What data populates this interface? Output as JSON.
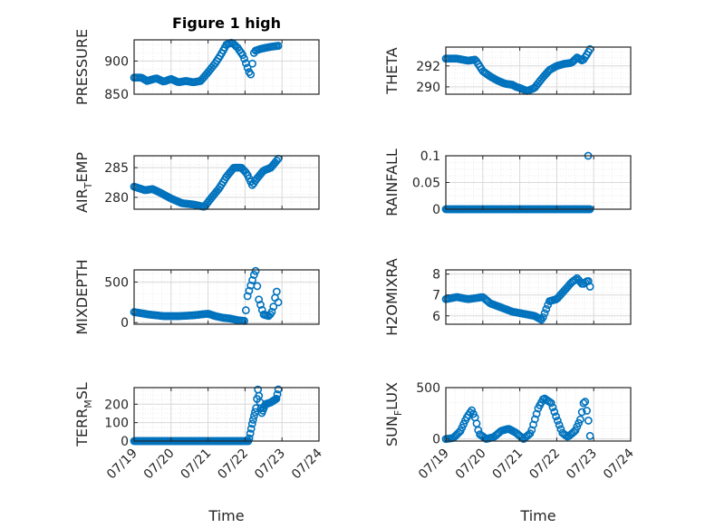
{
  "figure": {
    "title": "Figure 1 high"
  },
  "colors": {
    "marker": "#0072BD",
    "axes": "#262626",
    "grid_major": "#d9d9d9",
    "grid_minor": "#ebebeb"
  },
  "chart_data": [
    {
      "type": "scatter",
      "name": "pressure",
      "title": "Figure 1 high",
      "ylabel": "PRESSURE",
      "ylabel_sub": "",
      "yticks": [
        850,
        900
      ],
      "ylim": [
        850,
        932
      ],
      "xlim": [
        "07/19",
        "07/24"
      ],
      "grid": "on",
      "xticklabels": [],
      "xlabel": "",
      "anchors": [
        [
          0,
          875
        ],
        [
          0.2,
          875
        ],
        [
          0.35,
          870
        ],
        [
          0.6,
          874
        ],
        [
          0.8,
          869
        ],
        [
          1.0,
          873
        ],
        [
          1.2,
          868
        ],
        [
          1.4,
          870
        ],
        [
          1.6,
          868
        ],
        [
          1.8,
          870
        ],
        [
          2.0,
          883
        ],
        [
          2.2,
          897
        ],
        [
          2.35,
          910
        ],
        [
          2.5,
          925
        ],
        [
          2.65,
          928
        ],
        [
          2.8,
          920
        ],
        [
          2.95,
          908
        ],
        [
          3.1,
          885
        ],
        [
          3.15,
          878
        ],
        [
          3.25,
          915
        ],
        [
          3.4,
          918
        ],
        [
          3.55,
          920
        ],
        [
          3.75,
          922
        ],
        [
          3.9,
          923
        ]
      ],
      "count": 90
    },
    {
      "type": "scatter",
      "name": "theta",
      "title": "",
      "ylabel": "THETA",
      "ylabel_sub": "",
      "yticks": [
        290,
        292
      ],
      "ylim": [
        289.3,
        293.8
      ],
      "xlim": [
        "07/19",
        "07/24"
      ],
      "grid": "on",
      "xticklabels": [],
      "xlabel": "",
      "anchors": [
        [
          0,
          292.7
        ],
        [
          0.3,
          292.7
        ],
        [
          0.6,
          292.5
        ],
        [
          0.8,
          292.6
        ],
        [
          1.0,
          291.5
        ],
        [
          1.2,
          291.0
        ],
        [
          1.4,
          290.6
        ],
        [
          1.6,
          290.3
        ],
        [
          1.8,
          290.2
        ],
        [
          1.9,
          290.0
        ],
        [
          2.0,
          289.9
        ],
        [
          2.2,
          289.6
        ],
        [
          2.4,
          289.9
        ],
        [
          2.6,
          290.8
        ],
        [
          2.8,
          291.6
        ],
        [
          3.0,
          292.0
        ],
        [
          3.2,
          292.2
        ],
        [
          3.4,
          292.3
        ],
        [
          3.55,
          292.8
        ],
        [
          3.7,
          292.5
        ],
        [
          3.8,
          293.0
        ],
        [
          3.9,
          293.6
        ]
      ],
      "count": 90
    },
    {
      "type": "scatter",
      "name": "air_temp",
      "title": "",
      "ylabel": "AIR",
      "ylabel_sub": "T",
      "ylabel_tail": "EMP",
      "yticks": [
        280,
        285
      ],
      "ylim": [
        278,
        287
      ],
      "xlim": [
        "07/19",
        "07/24"
      ],
      "grid": "on",
      "xticklabels": [],
      "xlabel": "",
      "anchors": [
        [
          0,
          281.8
        ],
        [
          0.3,
          281.2
        ],
        [
          0.5,
          281.4
        ],
        [
          0.7,
          280.8
        ],
        [
          1.0,
          279.8
        ],
        [
          1.3,
          279.0
        ],
        [
          1.6,
          278.8
        ],
        [
          1.9,
          278.4
        ],
        [
          2.1,
          280.0
        ],
        [
          2.3,
          281.5
        ],
        [
          2.5,
          283.5
        ],
        [
          2.7,
          285.0
        ],
        [
          2.9,
          285.0
        ],
        [
          3.05,
          284.0
        ],
        [
          3.2,
          282.0
        ],
        [
          3.3,
          283.0
        ],
        [
          3.5,
          284.5
        ],
        [
          3.7,
          285.0
        ],
        [
          3.9,
          286.5
        ]
      ],
      "count": 95
    },
    {
      "type": "scatter",
      "name": "rainfall",
      "title": "",
      "ylabel": "RAINFALL",
      "ylabel_sub": "",
      "yticks": [
        0,
        0.05,
        0.1
      ],
      "yticklabels": [
        "0",
        "0.05",
        "0.1"
      ],
      "ylim": [
        0,
        0.1
      ],
      "xlim": [
        "07/19",
        "07/24"
      ],
      "grid": "on",
      "xticklabels": [],
      "xlabel": "",
      "anchors": [
        [
          0,
          0
        ],
        [
          3.9,
          0
        ]
      ],
      "extra_points": [
        [
          3.85,
          0.1
        ]
      ],
      "count": 130
    },
    {
      "type": "scatter",
      "name": "mixdepth",
      "title": "",
      "ylabel": "MIXDEPTH",
      "ylabel_sub": "",
      "yticks": [
        0,
        500
      ],
      "ylim": [
        -20,
        650
      ],
      "xlim": [
        "07/19",
        "07/24"
      ],
      "grid": "on",
      "xticklabels": [],
      "xlabel": "",
      "anchors": [
        [
          0,
          130
        ],
        [
          0.4,
          100
        ],
        [
          0.8,
          80
        ],
        [
          1.2,
          80
        ],
        [
          1.6,
          90
        ],
        [
          2.0,
          110
        ],
        [
          2.2,
          80
        ],
        [
          2.4,
          60
        ],
        [
          2.6,
          50
        ],
        [
          2.8,
          30
        ],
        [
          3.0,
          20
        ],
        [
          3.05,
          300
        ],
        [
          3.15,
          450
        ],
        [
          3.25,
          600
        ],
        [
          3.3,
          650
        ],
        [
          3.35,
          320
        ],
        [
          3.5,
          100
        ],
        [
          3.65,
          80
        ],
        [
          3.75,
          150
        ],
        [
          3.85,
          400
        ],
        [
          3.9,
          250
        ]
      ],
      "count": 90
    },
    {
      "type": "scatter",
      "name": "h2omixra",
      "title": "",
      "ylabel": "H2OMIXRA",
      "ylabel_sub": "",
      "yticks": [
        6,
        7,
        8
      ],
      "ylim": [
        5.6,
        8.2
      ],
      "xlim": [
        "07/19",
        "07/24"
      ],
      "grid": "on",
      "xticklabels": [],
      "xlabel": "",
      "anchors": [
        [
          0,
          6.8
        ],
        [
          0.3,
          6.9
        ],
        [
          0.6,
          6.8
        ],
        [
          1.0,
          6.9
        ],
        [
          1.2,
          6.6
        ],
        [
          1.5,
          6.4
        ],
        [
          1.8,
          6.2
        ],
        [
          2.1,
          6.1
        ],
        [
          2.4,
          6.0
        ],
        [
          2.6,
          5.8
        ],
        [
          2.8,
          6.7
        ],
        [
          3.0,
          6.8
        ],
        [
          3.2,
          7.2
        ],
        [
          3.4,
          7.6
        ],
        [
          3.55,
          7.8
        ],
        [
          3.7,
          7.5
        ],
        [
          3.85,
          7.7
        ],
        [
          3.9,
          7.4
        ]
      ],
      "count": 90
    },
    {
      "type": "scatter",
      "name": "terr_msl",
      "title": "",
      "ylabel": "TERR",
      "ylabel_sub": "M",
      "ylabel_tail": "SL",
      "yticks": [
        0,
        100,
        200
      ],
      "ylim": [
        0,
        290
      ],
      "xlim": [
        "07/19",
        "07/24"
      ],
      "grid": "on",
      "xticklabels": [
        "07/19",
        "07/20",
        "07/21",
        "07/22",
        "07/23",
        "07/24"
      ],
      "xlabel": "Time",
      "anchors": [
        [
          0,
          0
        ],
        [
          3.1,
          0
        ],
        [
          3.2,
          100
        ],
        [
          3.3,
          180
        ],
        [
          3.35,
          280
        ],
        [
          3.45,
          150
        ],
        [
          3.55,
          200
        ],
        [
          3.7,
          210
        ],
        [
          3.85,
          230
        ],
        [
          3.9,
          280
        ]
      ],
      "count": 150
    },
    {
      "type": "scatter",
      "name": "sun_flux",
      "title": "",
      "ylabel": "SUN",
      "ylabel_sub": "F",
      "ylabel_tail": "LUX",
      "yticks": [
        0,
        500
      ],
      "ylim": [
        -20,
        500
      ],
      "xlim": [
        "07/19",
        "07/24"
      ],
      "grid": "on",
      "xticklabels": [
        "07/19",
        "07/20",
        "07/21",
        "07/22",
        "07/23",
        "07/24"
      ],
      "xlabel": "Time",
      "anchors": [
        [
          0,
          0
        ],
        [
          0.2,
          10
        ],
        [
          0.4,
          80
        ],
        [
          0.55,
          200
        ],
        [
          0.7,
          280
        ],
        [
          0.8,
          200
        ],
        [
          0.9,
          50
        ],
        [
          1.1,
          0
        ],
        [
          1.3,
          20
        ],
        [
          1.5,
          80
        ],
        [
          1.7,
          100
        ],
        [
          1.9,
          60
        ],
        [
          2.1,
          0
        ],
        [
          2.3,
          60
        ],
        [
          2.5,
          300
        ],
        [
          2.65,
          400
        ],
        [
          2.85,
          350
        ],
        [
          3.0,
          200
        ],
        [
          3.15,
          60
        ],
        [
          3.3,
          20
        ],
        [
          3.5,
          80
        ],
        [
          3.65,
          200
        ],
        [
          3.75,
          400
        ],
        [
          3.85,
          200
        ],
        [
          3.9,
          30
        ]
      ],
      "count": 90
    }
  ]
}
